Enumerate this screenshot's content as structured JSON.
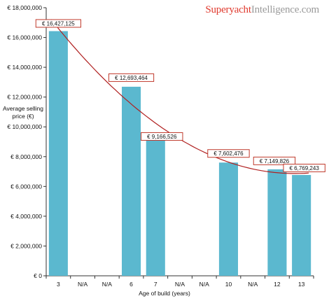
{
  "brand": {
    "part1": "Superyacht",
    "part2": "Intelligence.com",
    "color1": "#e03a2e",
    "color2": "#9a9a9a"
  },
  "chart_data": {
    "type": "bar",
    "xlabel": "Age of build (years)",
    "ylabel": "Average selling price (€)",
    "categories": [
      "3",
      "N/A",
      "N/A",
      "6",
      "7",
      "N/A",
      "N/A",
      "10",
      "N/A",
      "12",
      "13"
    ],
    "values": [
      16427125,
      null,
      null,
      12693464,
      9166526,
      null,
      null,
      7602476,
      null,
      7149826,
      6769243
    ],
    "data_labels": [
      "€ 16,427,125",
      "",
      "",
      "€ 12,693,464",
      "€ 9,166,526",
      "",
      "",
      "€ 7,602,476",
      "",
      "€ 7,149,826",
      "€ 6,769,243"
    ],
    "ylim": [
      0,
      18000000
    ],
    "yticks": [
      0,
      2000000,
      4000000,
      6000000,
      8000000,
      10000000,
      12000000,
      14000000,
      16000000,
      18000000
    ],
    "ytick_labels": [
      "€ 0",
      "€ 2,000,000",
      "€ 4,000,000",
      "€ 6,000,000",
      "€ 8,000,000",
      "€ 10,000,000",
      "€ 12,000,000",
      "€ 14,000,000",
      "€ 16,000,000",
      "€ 18,000,000"
    ],
    "trendline": {
      "type": "polynomial",
      "color": "#b02020"
    },
    "bar_color": "#5bb8cf",
    "label_border_color": "#c0392b",
    "grid": false
  }
}
